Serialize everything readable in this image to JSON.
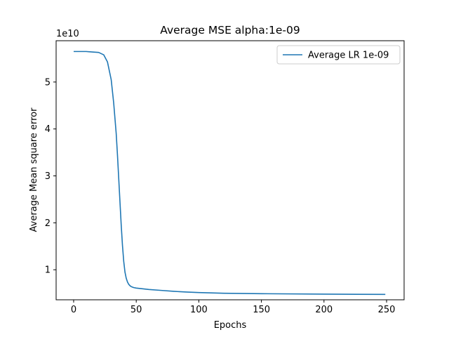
{
  "chart_data": {
    "type": "line",
    "title": "Average MSE alpha:1e-09",
    "xlabel": "Epochs",
    "ylabel": "Average Mean square error",
    "y_offset_label": "1e10",
    "xlim": [
      -14,
      264
    ],
    "ylim": [
      0.36,
      5.88
    ],
    "y_scale_factor": 10000000000,
    "x_ticks": [
      0,
      50,
      100,
      150,
      200,
      250
    ],
    "y_ticks": [
      1,
      2,
      3,
      4,
      5
    ],
    "grid": false,
    "legend_position": "top-right",
    "series": [
      {
        "name": "Average LR 1e-09",
        "color": "#1f77b4",
        "x": [
          0,
          5,
          10,
          15,
          20,
          24,
          27,
          30,
          32,
          34,
          35,
          36,
          37,
          38,
          39,
          40,
          41,
          42,
          43,
          44,
          45,
          46,
          48,
          50,
          55,
          60,
          70,
          80,
          90,
          100,
          120,
          150,
          200,
          249
        ],
        "y": [
          5.65,
          5.65,
          5.65,
          5.64,
          5.63,
          5.58,
          5.43,
          5.05,
          4.55,
          3.9,
          3.45,
          2.95,
          2.45,
          1.95,
          1.52,
          1.18,
          0.95,
          0.82,
          0.74,
          0.69,
          0.66,
          0.64,
          0.62,
          0.61,
          0.595,
          0.58,
          0.56,
          0.54,
          0.525,
          0.515,
          0.5,
          0.49,
          0.48,
          0.475
        ]
      }
    ]
  }
}
